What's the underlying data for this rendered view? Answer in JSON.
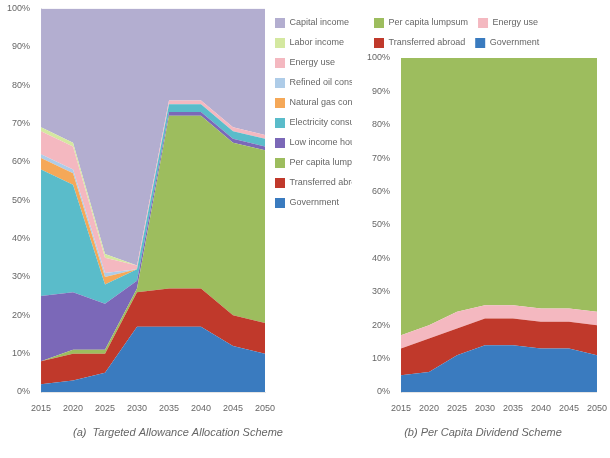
{
  "chart_data": [
    {
      "type": "area",
      "title": "(a)  Targeted Allowance Allocation Scheme",
      "x": [
        2015,
        2020,
        2025,
        2030,
        2035,
        2040,
        2045,
        2050
      ],
      "series": [
        {
          "name": "Government",
          "color": "#3a7bbf",
          "values": [
            0.02,
            0.03,
            0.05,
            0.17,
            0.17,
            0.17,
            0.12,
            0.1
          ]
        },
        {
          "name": "Transferred abroad",
          "color": "#c0392b",
          "values": [
            0.06,
            0.07,
            0.05,
            0.09,
            0.1,
            0.1,
            0.08,
            0.08
          ]
        },
        {
          "name": "Per capita lumpsum",
          "color": "#9dbd5e",
          "values": [
            0.0,
            0.01,
            0.01,
            0.01,
            0.45,
            0.45,
            0.45,
            0.45
          ]
        },
        {
          "name": "Low income households",
          "color": "#7b68b8",
          "values": [
            0.17,
            0.15,
            0.12,
            0.02,
            0.01,
            0.01,
            0.01,
            0.01
          ]
        },
        {
          "name": "Electricity consumption",
          "color": "#5abcca",
          "values": [
            0.33,
            0.28,
            0.05,
            0.03,
            0.02,
            0.02,
            0.02,
            0.02
          ]
        },
        {
          "name": "Natural gas consumption",
          "color": "#f5a858",
          "values": [
            0.03,
            0.03,
            0.02,
            0.0,
            0.0,
            0.0,
            0.0,
            0.0
          ]
        },
        {
          "name": "Refined oil consumption",
          "color": "#aecce8",
          "values": [
            0.01,
            0.01,
            0.01,
            0.0,
            0.0,
            0.0,
            0.0,
            0.0
          ]
        },
        {
          "name": "Energy use",
          "color": "#f4b8c0",
          "values": [
            0.06,
            0.06,
            0.04,
            0.01,
            0.01,
            0.01,
            0.01,
            0.01
          ]
        },
        {
          "name": "Labor income",
          "color": "#d4e8a0",
          "values": [
            0.01,
            0.01,
            0.01,
            0.0,
            0.0,
            0.0,
            0.0,
            0.0
          ]
        },
        {
          "name": "Capital income",
          "color": "#b3aed0",
          "values": [
            0.31,
            0.35,
            0.64,
            0.67,
            0.24,
            0.24,
            0.31,
            0.33
          ]
        }
      ],
      "xlim": [
        2015,
        2050
      ],
      "xticks": [
        2015,
        2020,
        2025,
        2030,
        2035,
        2040,
        2045,
        2050
      ],
      "ylim": [
        0,
        1.0
      ],
      "yticks": [
        {
          "value": 0,
          "label": "0%"
        },
        {
          "value": 0.1,
          "label": "10%"
        },
        {
          "value": 0.2,
          "label": "20%"
        },
        {
          "value": 0.3,
          "label": "30%"
        },
        {
          "value": 0.4,
          "label": "40%"
        },
        {
          "value": 0.5,
          "label": "50%"
        },
        {
          "value": 0.6,
          "label": "60%"
        },
        {
          "value": 0.7,
          "label": "70%"
        },
        {
          "value": 0.8,
          "label": "80%"
        },
        {
          "value": 0.9,
          "label": "90%"
        },
        {
          "value": 1.0,
          "label": "100%"
        }
      ],
      "stacked": true,
      "grid": false,
      "legend": "right"
    },
    {
      "type": "area",
      "title": "(b) Per Capita Dividend Scheme",
      "x": [
        2015,
        2020,
        2025,
        2030,
        2035,
        2040,
        2045,
        2050
      ],
      "series": [
        {
          "name": "Government",
          "color": "#3a7bbf",
          "values": [
            0.05,
            0.06,
            0.11,
            0.14,
            0.14,
            0.13,
            0.13,
            0.11
          ]
        },
        {
          "name": "Transferred abroad",
          "color": "#c0392b",
          "values": [
            0.08,
            0.1,
            0.08,
            0.08,
            0.08,
            0.08,
            0.08,
            0.09
          ]
        },
        {
          "name": "Energy use",
          "color": "#f4b8c0",
          "values": [
            0.04,
            0.04,
            0.05,
            0.04,
            0.04,
            0.04,
            0.04,
            0.04
          ]
        },
        {
          "name": "Per capita lumpsum",
          "color": "#9dbd5e",
          "values": [
            0.83,
            0.8,
            0.76,
            0.74,
            0.74,
            0.75,
            0.75,
            0.76
          ]
        }
      ],
      "xlim": [
        2015,
        2050
      ],
      "xticks": [
        2015,
        2020,
        2025,
        2030,
        2035,
        2040,
        2045,
        2050
      ],
      "ylim": [
        0,
        1.0
      ],
      "yticks": [
        {
          "value": 0,
          "label": "0%"
        },
        {
          "value": 0.1,
          "label": "10%"
        },
        {
          "value": 0.2,
          "label": "20%"
        },
        {
          "value": 0.3,
          "label": "30%"
        },
        {
          "value": 0.4,
          "label": "40%"
        },
        {
          "value": 0.5,
          "label": "50%"
        },
        {
          "value": 0.6,
          "label": "60%"
        },
        {
          "value": 0.7,
          "label": "70%"
        },
        {
          "value": 0.8,
          "label": "80%"
        },
        {
          "value": 0.9,
          "label": "90%"
        },
        {
          "value": 1.0,
          "label": "100%"
        }
      ],
      "stacked": true,
      "grid": false,
      "legend": "top"
    }
  ]
}
